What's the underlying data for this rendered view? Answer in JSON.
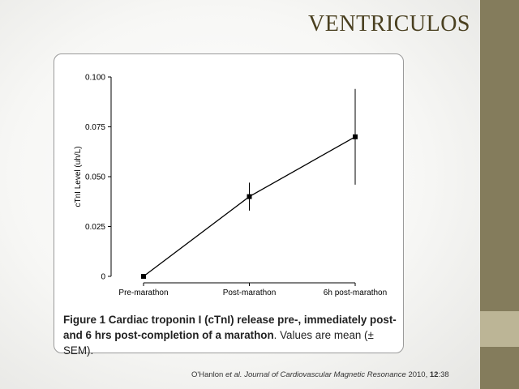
{
  "slide": {
    "title": "VENTRICULOS",
    "colors": {
      "sidebar": "#847c5c",
      "sidebar_accent": "#bcb596",
      "title": "#4a4020"
    }
  },
  "figure": {
    "caption_bold": "Figure 1 Cardiac troponin I (cTnI) release pre-, immediately post- and 6 hrs post-completion of a marathon",
    "caption_rest": ". Values are mean (± SEM)."
  },
  "citation": {
    "authors": "O'Hanlon ",
    "et_al": "et al.",
    "journal": " Journal of Cardiovascular Magnetic Resonance",
    "year": " 2010, ",
    "volume": "12",
    "pages": ":38"
  },
  "chart_data": {
    "type": "line",
    "categories": [
      "Pre-marathon",
      "Post-marathon",
      "6h post-marathon"
    ],
    "series": [
      {
        "values": [
          0,
          0.04,
          0.07
        ],
        "error_low": [
          0,
          0.033,
          0.046
        ],
        "error_high": [
          0,
          0.047,
          0.094
        ]
      }
    ],
    "ylabel": "cTnI Level (uh/L)",
    "xlabel": "",
    "ylim": [
      0,
      0.1
    ],
    "yticks": [
      0,
      0.025,
      0.05,
      0.075,
      0.1
    ],
    "ytick_labels": [
      "0",
      "0.025",
      "0.050",
      "0.075",
      "0.100"
    ],
    "grid": false,
    "marker": "square",
    "color": "#000000"
  }
}
